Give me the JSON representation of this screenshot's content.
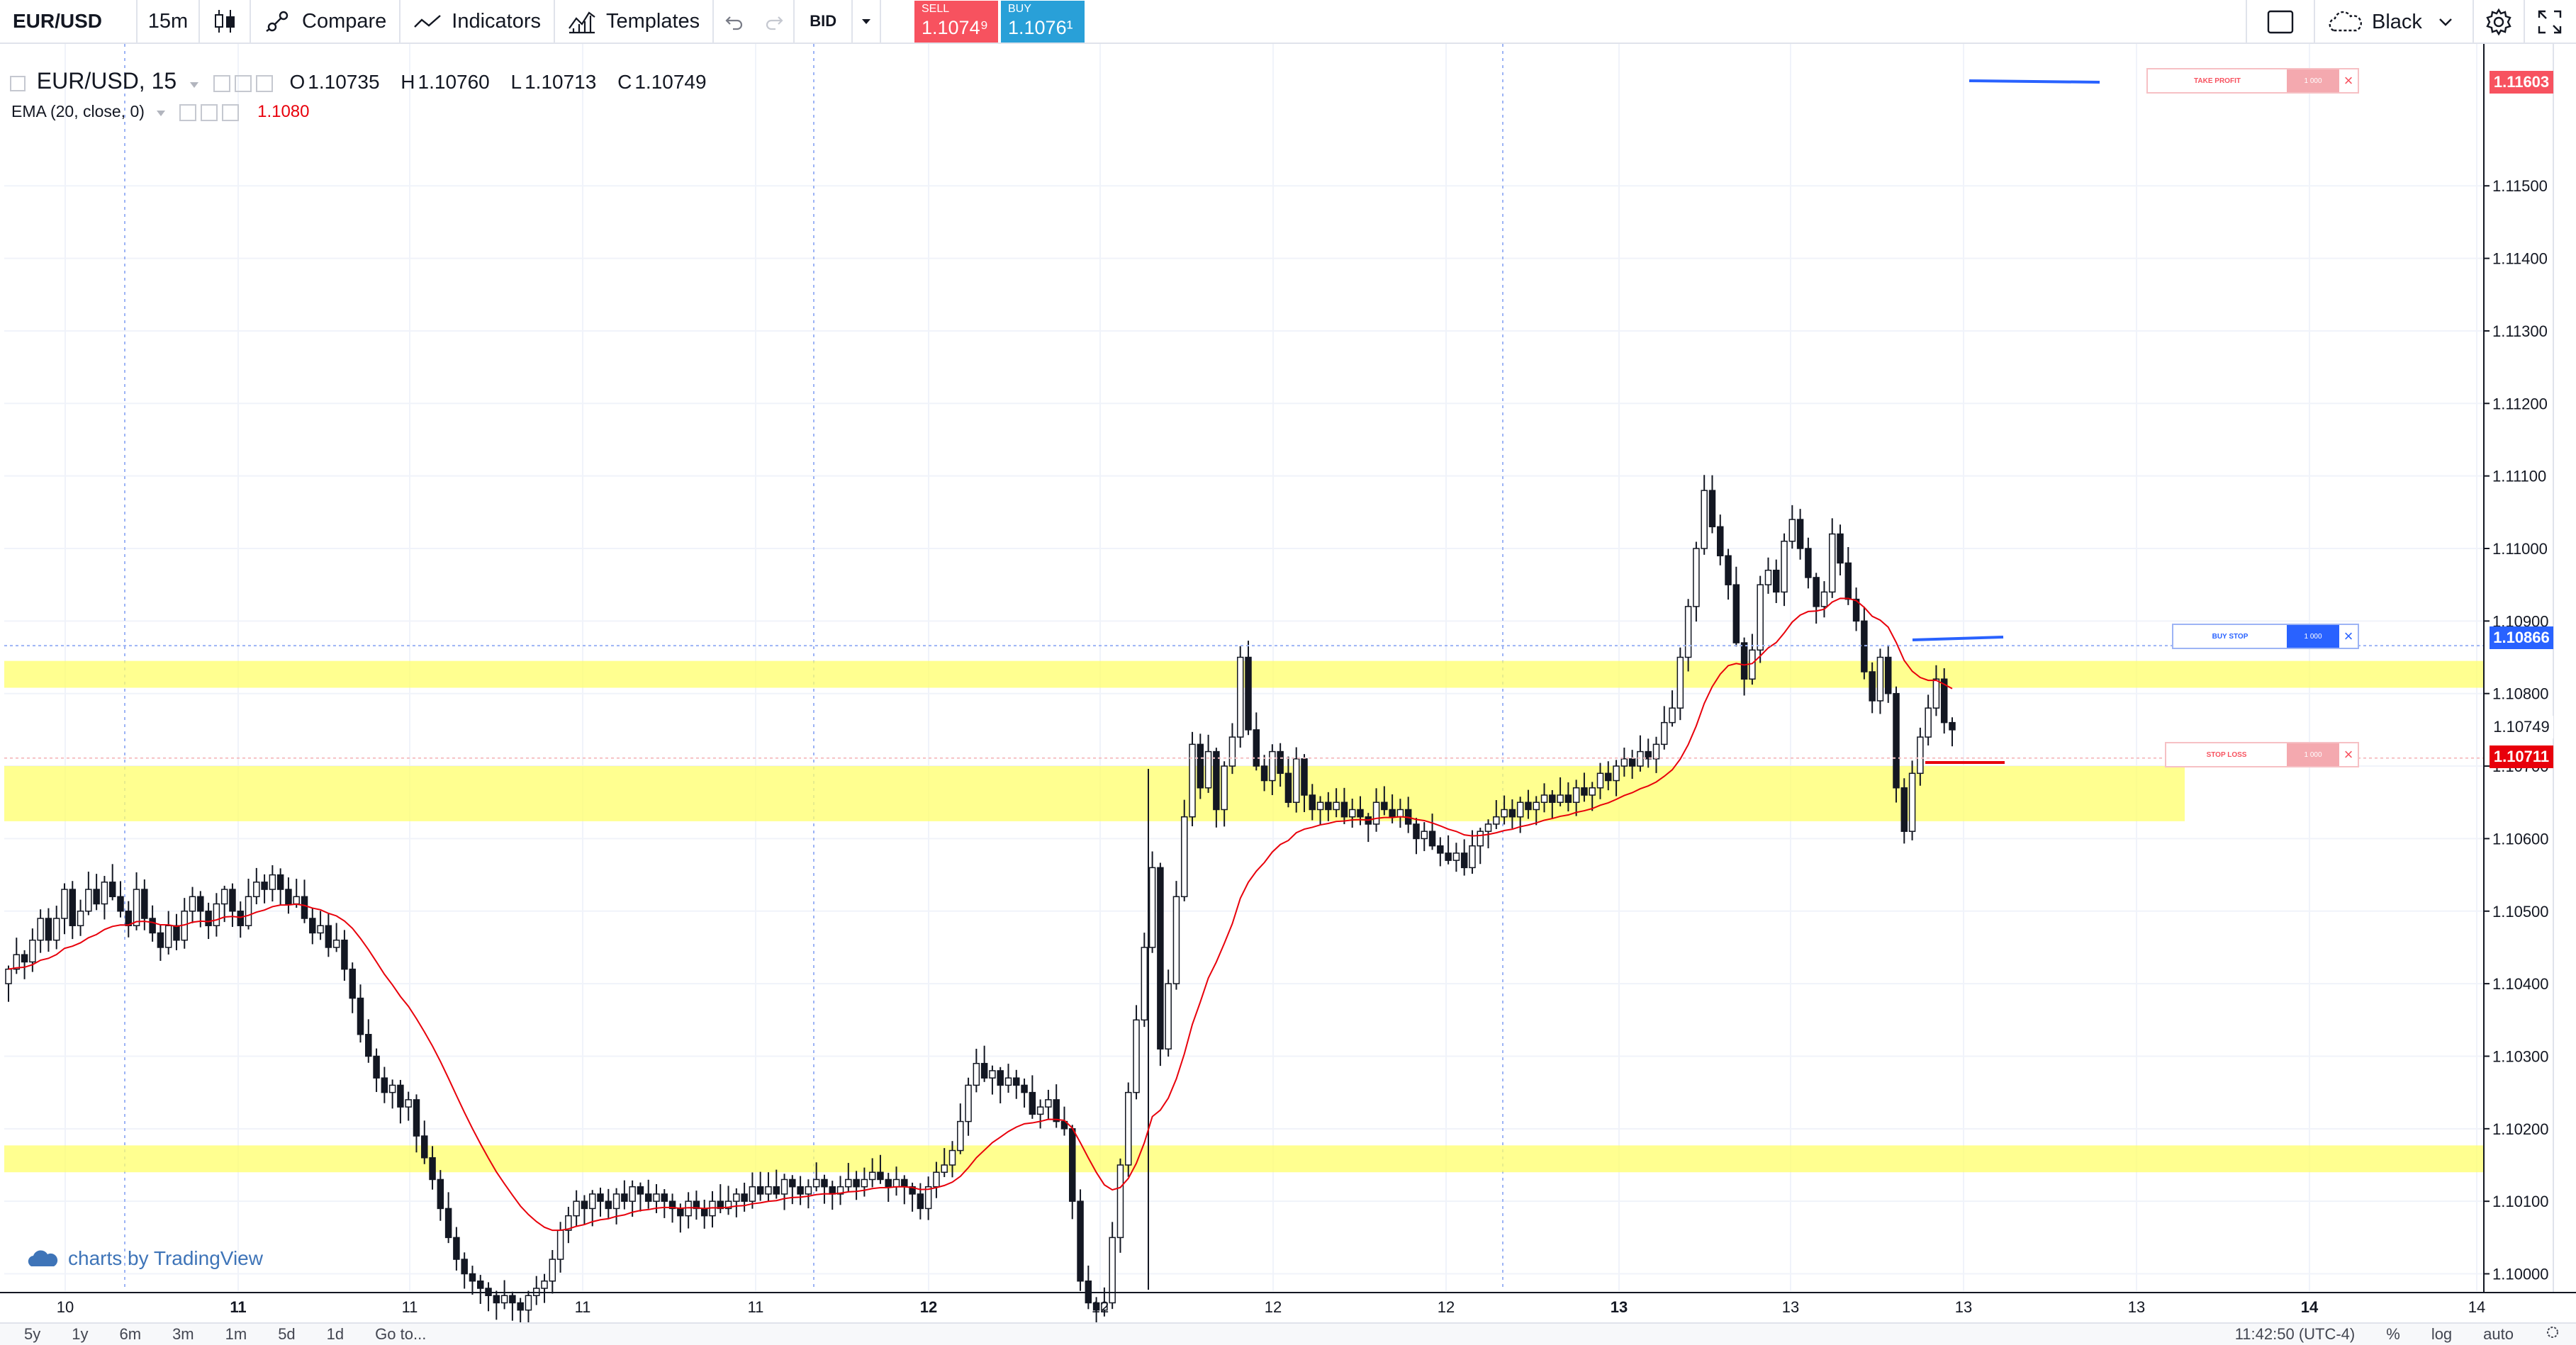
{
  "toolbar": {
    "symbol": "EUR/USD",
    "interval": "15m",
    "compare_label": "Compare",
    "indicators_label": "Indicators",
    "templates_label": "Templates",
    "bid_label": "BID",
    "sell": {
      "label": "SELL",
      "price": "1.1074⁹",
      "color": "#f7525f"
    },
    "buy": {
      "label": "BUY",
      "price": "1.1076¹",
      "color": "#29a0d8"
    },
    "theme_label": "Black"
  },
  "legend": {
    "symbol_interval": "EUR/USD, 15",
    "open_key": "O",
    "open": "1.10735",
    "high_key": "H",
    "high": "1.10760",
    "low_key": "L",
    "low": "1.10713",
    "close_key": "C",
    "close": "1.10749",
    "ema_label": "EMA (20, close, 0)",
    "ema_value": "1.1080",
    "ema_color": "#e8000b"
  },
  "orders": {
    "take_profit": {
      "label": "TAKE PROFIT",
      "qty": "1 000",
      "price": "1.11603",
      "color": "#f7525f"
    },
    "buy_stop": {
      "label": "BUY STOP",
      "qty": "1 000",
      "price": "1.10866",
      "color": "#2962ff"
    },
    "stop_loss": {
      "label": "STOP LOSS",
      "qty": "1 000",
      "price": "1.10711",
      "color": "#f7525f"
    }
  },
  "price_axis": {
    "ticks": [
      "1.11500",
      "1.11400",
      "1.11300",
      "1.11200",
      "1.11100",
      "1.11000",
      "1.10900",
      "1.10800",
      "1.10700",
      "1.10600",
      "1.10500",
      "1.10400",
      "1.10300",
      "1.10200",
      "1.10100",
      "1.10000"
    ],
    "last_price": "1.10749"
  },
  "time_axis": {
    "labels": [
      "10",
      "11",
      "11",
      "11",
      "11",
      "12",
      "12",
      "12",
      "12",
      "13",
      "13",
      "13",
      "13",
      "14",
      "14"
    ]
  },
  "watermark": "charts by TradingView",
  "bottom_bar": {
    "ranges": [
      "5y",
      "1y",
      "6m",
      "3m",
      "1m",
      "5d",
      "1d"
    ],
    "goto": "Go to...",
    "time": "11:42:50 (UTC-4)",
    "percent": "%",
    "log": "log",
    "auto": "auto"
  },
  "chart_data": {
    "type": "candlestick",
    "overlay": "EMA (20, close, 0)",
    "y_range": [
      1.0998,
      1.1168
    ],
    "support_resistance_zones": [
      [
        1.10808,
        1.10845
      ],
      [
        1.10624,
        1.107
      ],
      [
        1.1014,
        1.10177
      ]
    ],
    "closes": [
      1.1042,
      1.1044,
      1.1043,
      1.1046,
      1.1049,
      1.1046,
      1.1049,
      1.1053,
      1.1048,
      1.105,
      1.1053,
      1.1051,
      1.1054,
      1.1052,
      1.105,
      1.1048,
      1.1053,
      1.1049,
      1.1047,
      1.1045,
      1.1048,
      1.1046,
      1.105,
      1.1052,
      1.105,
      1.1048,
      1.1051,
      1.1053,
      1.105,
      1.1048,
      1.1052,
      1.1054,
      1.1053,
      1.1055,
      1.1053,
      1.1051,
      1.1052,
      1.1049,
      1.1047,
      1.1048,
      1.1045,
      1.1046,
      1.1042,
      1.1038,
      1.1033,
      1.103,
      1.1027,
      1.1025,
      1.1026,
      1.1023,
      1.1024,
      1.1019,
      1.1016,
      1.1013,
      1.1009,
      1.1005,
      1.1002,
      1.1,
      1.0999,
      1.0998,
      1.0997,
      1.0996,
      1.0997,
      1.0996,
      1.0995,
      1.0997,
      1.0998,
      1.0999,
      1.1002,
      1.1006,
      1.1008,
      1.101,
      1.1009,
      1.1011,
      1.101,
      1.1009,
      1.1011,
      1.101,
      1.1012,
      1.1011,
      1.101,
      1.1011,
      1.101,
      1.1009,
      1.1008,
      1.101,
      1.1009,
      1.1008,
      1.101,
      1.1009,
      1.101,
      1.1011,
      1.101,
      1.1012,
      1.1011,
      1.1012,
      1.1011,
      1.1013,
      1.1012,
      1.1011,
      1.1012,
      1.1013,
      1.1012,
      1.1011,
      1.1012,
      1.1013,
      1.1012,
      1.1013,
      1.1014,
      1.1013,
      1.1012,
      1.1013,
      1.1012,
      1.1011,
      1.1009,
      1.1012,
      1.1014,
      1.1015,
      1.1017,
      1.1021,
      1.1026,
      1.1029,
      1.1027,
      1.1028,
      1.1026,
      1.1027,
      1.1026,
      1.1025,
      1.1022,
      1.1023,
      1.1024,
      1.1021,
      1.102,
      1.101,
      1.0999,
      1.0996,
      1.0995,
      1.0996,
      1.1005,
      1.1015,
      1.1025,
      1.1035,
      1.1045,
      1.1056,
      1.1031,
      1.104,
      1.1052,
      1.1063,
      1.1073,
      1.1067,
      1.1072,
      1.1064,
      1.107,
      1.1074,
      1.1085,
      1.1075,
      1.107,
      1.1068,
      1.1072,
      1.1069,
      1.1065,
      1.1071,
      1.1066,
      1.1064,
      1.1065,
      1.1064,
      1.1065,
      1.1063,
      1.1064,
      1.1063,
      1.1062,
      1.1065,
      1.1064,
      1.1063,
      1.1064,
      1.1062,
      1.106,
      1.1061,
      1.1059,
      1.1058,
      1.1057,
      1.1058,
      1.1056,
      1.1059,
      1.1061,
      1.1062,
      1.1063,
      1.1064,
      1.1063,
      1.1065,
      1.1064,
      1.1065,
      1.1066,
      1.1065,
      1.1066,
      1.1065,
      1.1067,
      1.1066,
      1.1067,
      1.1069,
      1.1068,
      1.107,
      1.1071,
      1.107,
      1.1072,
      1.1071,
      1.1073,
      1.1076,
      1.1078,
      1.1085,
      1.1092,
      1.11,
      1.1108,
      1.1103,
      1.1099,
      1.1095,
      1.1087,
      1.1082,
      1.1086,
      1.1095,
      1.1097,
      1.1094,
      1.1101,
      1.1104,
      1.11,
      1.1096,
      1.1092,
      1.1094,
      1.1102,
      1.1098,
      1.1093,
      1.109,
      1.1083,
      1.1079,
      1.1085,
      1.108,
      1.1067,
      1.1061,
      1.1069,
      1.1074,
      1.1078,
      1.1082,
      1.1076,
      1.1075
    ]
  }
}
